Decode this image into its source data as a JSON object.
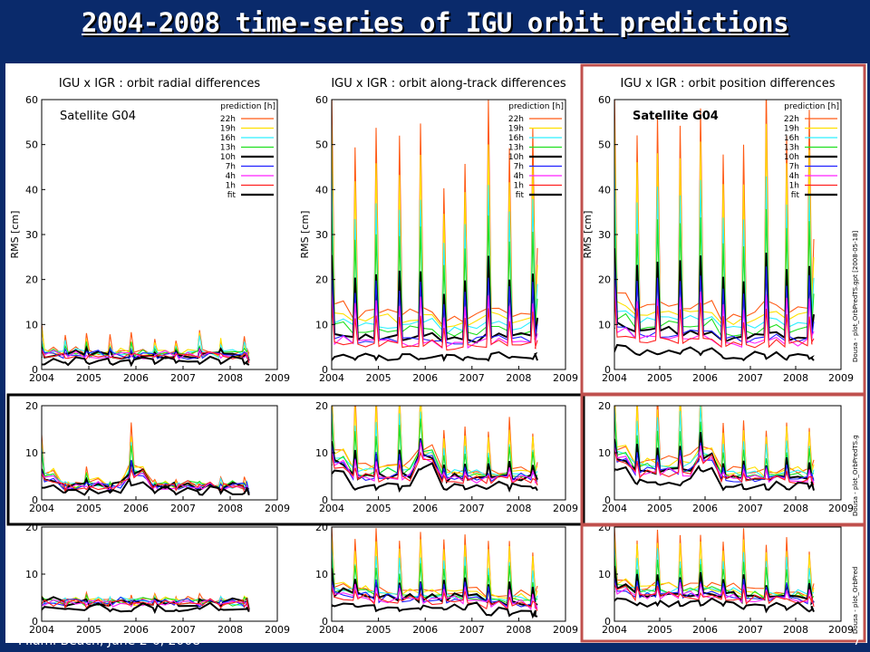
{
  "slide": {
    "title": "2004-2008 time-series of IGU orbit predictions",
    "footer_left": "Miami Beach, June 2-6, 2008",
    "footer_right": "7"
  },
  "side_labels": {
    "top": "Dousa - plot_OrbPredTS.gpt  [2008-05-18]",
    "middle": "Dousa - plot_OrbPredTS.g",
    "bottom": "Dousa - plot_OrbPred"
  },
  "colors": {
    "slide_background": "#0a2a6b",
    "highlight_frame": "#c0504d",
    "series": {
      "22h": "#ff5a14",
      "19h": "#ffe000",
      "16h": "#2ef0ff",
      "13h": "#20e020",
      "10h": "#000000",
      "7h": "#2020ff",
      "4h": "#ff20ff",
      "1h": "#ff2020",
      "fit": "#000000"
    }
  },
  "chart_data": [
    {
      "type": "line",
      "title": "IGU x IGR : orbit radial differences",
      "annotation": "Satellite G04",
      "ylabel": "RMS [cm]",
      "xlabel": "",
      "xlim": [
        2004,
        2009
      ],
      "ylim": [
        0,
        60
      ],
      "xticks": [
        "2004",
        "2005",
        "2006",
        "2007",
        "2008",
        "2009"
      ],
      "yticks": [
        "0",
        "10",
        "20",
        "30",
        "40",
        "50",
        "60"
      ],
      "legend": {
        "title": "prediction [h]",
        "placement": "top-right",
        "entries": [
          "22h",
          "19h",
          "16h",
          "13h",
          "10h",
          "7h",
          "4h",
          "1h",
          "fit"
        ]
      },
      "grid": false,
      "peak_times": [
        2004.0,
        2004.5,
        2004.95,
        2005.45,
        2005.9,
        2006.4,
        2006.85,
        2007.35,
        2007.8,
        2008.3
      ],
      "end_time": 2008.4,
      "values": {
        "22h": [
          9,
          7,
          7,
          6,
          7,
          6,
          5,
          8,
          6,
          6
        ],
        "fit": [
          1,
          1,
          1,
          1,
          1,
          1,
          1,
          1,
          1,
          1
        ]
      }
    },
    {
      "type": "line",
      "title": "IGU x IGR : orbit along-track differences",
      "annotation": "",
      "ylabel": "RMS [cm]",
      "xlabel": "",
      "xlim": [
        2004,
        2009
      ],
      "ylim": [
        0,
        60
      ],
      "xticks": [
        "2004",
        "2005",
        "2006",
        "2007",
        "2008",
        "2009"
      ],
      "yticks": [
        "0",
        "10",
        "20",
        "30",
        "40",
        "50",
        "60"
      ],
      "legend": {
        "title": "prediction [h]",
        "placement": "top-right",
        "entries": [
          "22h",
          "19h",
          "16h",
          "13h",
          "10h",
          "7h",
          "4h",
          "1h",
          "fit"
        ]
      },
      "grid": false,
      "peak_times": [
        2004.0,
        2004.5,
        2004.95,
        2005.45,
        2005.9,
        2006.4,
        2006.85,
        2007.35,
        2007.8,
        2008.3
      ],
      "end_time": 2008.4,
      "values": {
        "22h": [
          62,
          48,
          52,
          50,
          54,
          40,
          44,
          58,
          48,
          52
        ],
        "fit": [
          2,
          2,
          2,
          2,
          2,
          2,
          2,
          2,
          2,
          2
        ]
      }
    },
    {
      "type": "line",
      "title": "IGU x IGR : orbit position differences",
      "annotation": "Satellite G04",
      "ylabel": "RMS [cm]",
      "xlabel": "",
      "xlim": [
        2004,
        2009
      ],
      "ylim": [
        0,
        60
      ],
      "xticks": [
        "2004",
        "2005",
        "2006",
        "2007",
        "2008",
        "2009"
      ],
      "yticks": [
        "0",
        "10",
        "20",
        "30",
        "40",
        "50",
        "60"
      ],
      "legend": {
        "title": "prediction [h]",
        "placement": "top-right",
        "entries": [
          "22h",
          "19h",
          "16h",
          "13h",
          "10h",
          "7h",
          "4h",
          "1h",
          "fit"
        ]
      },
      "grid": false,
      "peak_times": [
        2004.0,
        2004.5,
        2004.95,
        2005.45,
        2005.9,
        2006.4,
        2006.85,
        2007.35,
        2007.8,
        2008.3
      ],
      "end_time": 2008.4,
      "values": {
        "22h": [
          63,
          52,
          56,
          54,
          58,
          46,
          48,
          62,
          52,
          56
        ],
        "fit": [
          4,
          3,
          3,
          3,
          3,
          2,
          2,
          2,
          2,
          2
        ]
      }
    },
    {
      "type": "line",
      "title": "",
      "annotation": "",
      "ylabel": "",
      "xlabel": "",
      "xlim": [
        2004,
        2009
      ],
      "ylim": [
        0,
        20
      ],
      "xticks": [
        "2004",
        "2005",
        "2006",
        "2007",
        "2008",
        "2009"
      ],
      "yticks": [
        "0",
        "10",
        "20"
      ],
      "grid": false,
      "values": {
        "22h": [
          13,
          3,
          6,
          3,
          15,
          3,
          4,
          3,
          4,
          3
        ],
        "fit": [
          2,
          1,
          1,
          1,
          3,
          1,
          1,
          1,
          1,
          1
        ]
      }
    },
    {
      "type": "line",
      "title": "",
      "annotation": "",
      "ylabel": "",
      "xlabel": "",
      "xlim": [
        2004,
        2009
      ],
      "ylim": [
        0,
        20
      ],
      "xticks": [
        "2004",
        "2005",
        "2006",
        "2007",
        "2008",
        "2009"
      ],
      "yticks": [
        "0",
        "10",
        "20"
      ],
      "grid": false,
      "values": {
        "22h": [
          24,
          22,
          22,
          24,
          24,
          14,
          15,
          13,
          16,
          14
        ],
        "fit": [
          5,
          2,
          2,
          2,
          6,
          2,
          2,
          2,
          2,
          2
        ]
      }
    },
    {
      "type": "line",
      "title": "",
      "annotation": "",
      "ylabel": "",
      "xlabel": "",
      "xlim": [
        2004,
        2009
      ],
      "ylim": [
        0,
        20
      ],
      "xticks": [
        "2004",
        "2005",
        "2006",
        "2007",
        "2008",
        "2009"
      ],
      "yticks": [
        "0",
        "10",
        "20"
      ],
      "grid": false,
      "values": {
        "22h": [
          24,
          22,
          22,
          24,
          24,
          16,
          16,
          14,
          16,
          15
        ],
        "fit": [
          6,
          3,
          3,
          3,
          6,
          2,
          2,
          2,
          2,
          2
        ]
      }
    },
    {
      "type": "line",
      "title": "",
      "annotation": "",
      "ylabel": "",
      "xlabel": "",
      "xlim": [
        2004,
        2009
      ],
      "ylim": [
        0,
        20
      ],
      "xticks": [
        "2004",
        "2005",
        "2006",
        "2007",
        "2008",
        "2009"
      ],
      "yticks": [
        "0",
        "10",
        "20"
      ],
      "grid": false,
      "values": {
        "22h": [
          5,
          4,
          5,
          4,
          4,
          4,
          4,
          4,
          4,
          4
        ],
        "fit": [
          2,
          2,
          2,
          2,
          2,
          2,
          2,
          2,
          2,
          2
        ]
      }
    },
    {
      "type": "line",
      "title": "",
      "annotation": "",
      "ylabel": "",
      "xlabel": "",
      "xlim": [
        2004,
        2009
      ],
      "ylim": [
        0,
        20
      ],
      "xticks": [
        "2004",
        "2005",
        "2006",
        "2007",
        "2008",
        "2009"
      ],
      "yticks": [
        "0",
        "10",
        "20"
      ],
      "grid": false,
      "values": {
        "22h": [
          20,
          16,
          18,
          16,
          18,
          16,
          17,
          16,
          17,
          14
        ],
        "fit": [
          3,
          3,
          2,
          2,
          2,
          2,
          2,
          1,
          1,
          1
        ]
      }
    },
    {
      "type": "line",
      "title": "",
      "annotation": "",
      "ylabel": "",
      "xlabel": "",
      "xlim": [
        2004,
        2009
      ],
      "ylim": [
        0,
        20
      ],
      "xticks": [
        "2004",
        "2005",
        "2006",
        "2007",
        "2008",
        "2009"
      ],
      "yticks": [
        "0",
        "10",
        "20"
      ],
      "grid": false,
      "values": {
        "22h": [
          20,
          17,
          19,
          17,
          18,
          16,
          18,
          16,
          17,
          14
        ],
        "fit": [
          4,
          3,
          3,
          3,
          3,
          3,
          2,
          2,
          2,
          2
        ]
      }
    }
  ]
}
